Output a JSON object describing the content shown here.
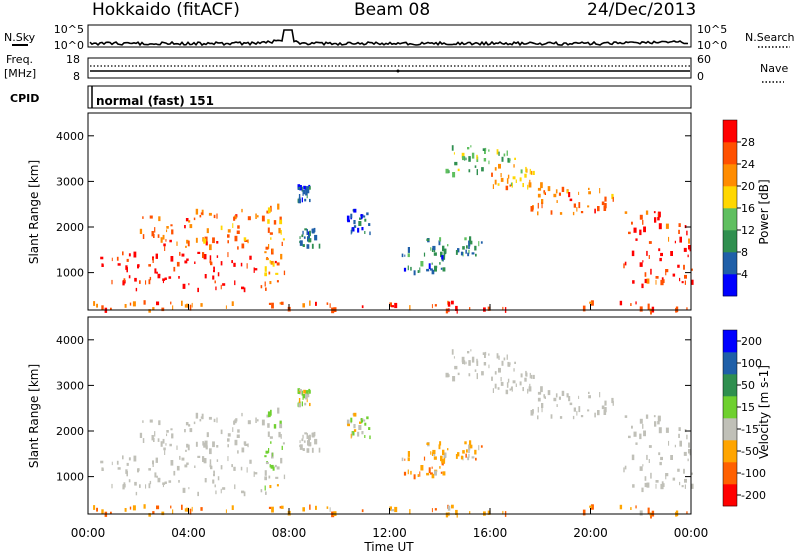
{
  "header": {
    "station": "Hokkaido (fitACF)",
    "beam": "Beam 08",
    "date": "24/Dec/2013"
  },
  "top_panels": {
    "nsky_label": "N.Sky",
    "nsky_ticks": [
      "10^5",
      "10^0"
    ],
    "nsearch_ticks": [
      "10^5",
      "10^0"
    ],
    "nsearch_label": "N.Search",
    "freq_label_1": "Freq.",
    "freq_label_2": "[MHz]",
    "freq_ticks": [
      "18",
      "8"
    ],
    "nave_ticks": [
      "60",
      "0"
    ],
    "nave_label": "Nave",
    "cpid_label": "CPID",
    "cpid_value": "normal (fast) 151"
  },
  "power_panel": {
    "ylabel": "Slant Range [km]",
    "yticks": [
      "4000",
      "3000",
      "2000",
      "1000"
    ],
    "colorbar_label": "Power [dB]",
    "colorbar_ticks": [
      "28",
      "24",
      "20",
      "16",
      "12",
      "8",
      "4"
    ],
    "colors": [
      "#0000ff",
      "#1f5fa8",
      "#2f8f4f",
      "#5fbf5f",
      "#ffd700",
      "#ff8c00",
      "#ff5000",
      "#ff0000"
    ]
  },
  "velocity_panel": {
    "ylabel": "Slant Range [km]",
    "yticks": [
      "4000",
      "3000",
      "2000",
      "1000"
    ],
    "colorbar_label": "Velocity [m s-1]",
    "colorbar_ticks": [
      "200",
      "100",
      "50",
      "15",
      "-15",
      "-50",
      "-100",
      "-200"
    ],
    "colors": [
      "#0000ff",
      "#1f5fa8",
      "#2f8f4f",
      "#6fd02f",
      "#c0c0b8",
      "#ffa500",
      "#ff6000",
      "#ff0000"
    ]
  },
  "x_axis": {
    "ticks": [
      "00:00",
      "04:00",
      "08:00",
      "12:00",
      "16:00",
      "20:00",
      "00:00"
    ],
    "label": "Time UT"
  },
  "chart_data": {
    "type": "heatmap",
    "x_range_hours": [
      0,
      24
    ],
    "y_range_km": [
      180,
      4500
    ],
    "series": [
      {
        "name": "Power",
        "unit": "dB",
        "range": [
          0,
          32
        ]
      },
      {
        "name": "Velocity",
        "unit": "m/s",
        "range": [
          -200,
          200
        ]
      }
    ],
    "regions": [
      {
        "t": [
          0.2,
          7.5
        ],
        "r": [
          650,
          1500
        ],
        "power": 30,
        "vel": 0
      },
      {
        "t": [
          2.0,
          7.0
        ],
        "r": [
          1500,
          2400
        ],
        "power": 24,
        "vel": 0
      },
      {
        "t": [
          7.0,
          7.8
        ],
        "r": [
          800,
          2600
        ],
        "power": 22,
        "vel": 10
      },
      {
        "t": [
          8.4,
          9.2
        ],
        "r": [
          1600,
          2000
        ],
        "power": 8,
        "vel": 0
      },
      {
        "t": [
          8.3,
          8.8
        ],
        "r": [
          2600,
          2950
        ],
        "power": 6,
        "vel": 5
      },
      {
        "t": [
          10.3,
          11.2
        ],
        "r": [
          1900,
          2400
        ],
        "power": 6,
        "vel": 5
      },
      {
        "t": [
          12.4,
          14.2
        ],
        "r": [
          1000,
          1600
        ],
        "power": 8,
        "vel": -40
      },
      {
        "t": [
          13.3,
          15.8
        ],
        "r": [
          1400,
          1800
        ],
        "power": 9,
        "vel": -30
      },
      {
        "t": [
          14.2,
          17.0
        ],
        "r": [
          3200,
          3800
        ],
        "power": 14,
        "vel": 0
      },
      {
        "t": [
          16.0,
          18.0
        ],
        "r": [
          2900,
          3400
        ],
        "power": 20,
        "vel": 0
      },
      {
        "t": [
          17.5,
          21.0
        ],
        "r": [
          2300,
          2900
        ],
        "power": 24,
        "vel": 0
      },
      {
        "t": [
          21.3,
          24.0
        ],
        "r": [
          750,
          2400
        ],
        "power": 28,
        "vel": 0
      },
      {
        "t": [
          0.0,
          24.0
        ],
        "r": [
          200,
          400
        ],
        "power": 26,
        "vel": -40
      }
    ]
  }
}
